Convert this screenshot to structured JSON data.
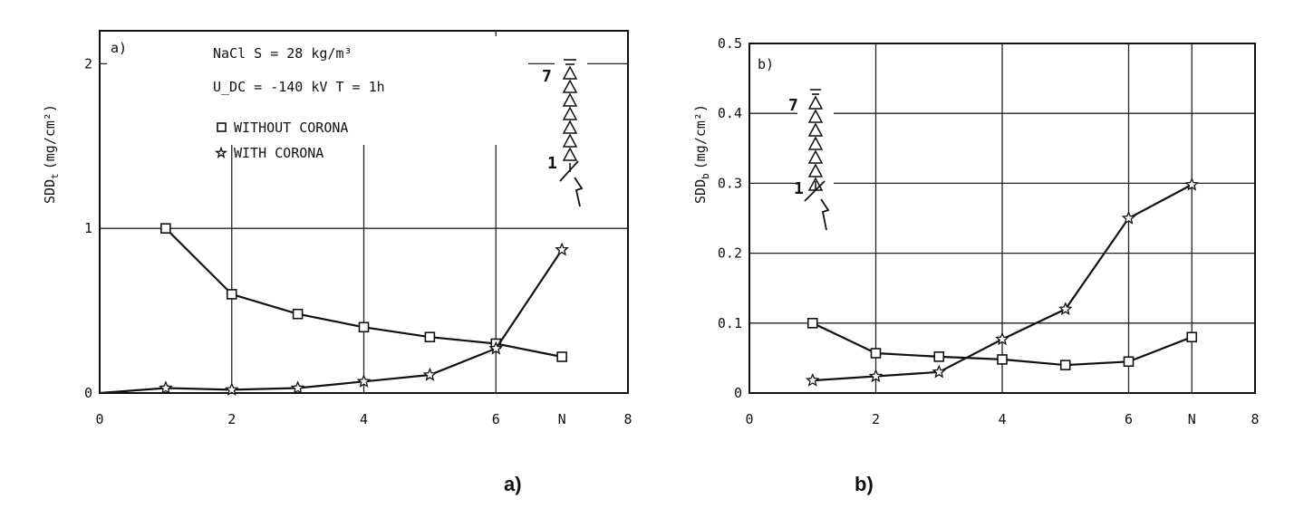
{
  "captions": {
    "a": "a)",
    "b": "b)"
  },
  "chart_data": [
    {
      "type": "line",
      "panel_label": "a)",
      "ylabel": "SDD_t (mg/cm²)",
      "ylabel_base": "SDD",
      "ylabel_sub": "t",
      "ylabel_unit": "(mg/cm²)",
      "xlim": [
        0,
        8
      ],
      "ylim": [
        0,
        2.2
      ],
      "xticks": [
        "0",
        "2",
        "4",
        "6",
        "N",
        "8"
      ],
      "xtick_values": [
        0,
        2,
        4,
        6,
        7,
        8
      ],
      "yticks": [
        "0",
        "1",
        "2"
      ],
      "ytick_values": [
        0,
        1,
        2
      ],
      "annotations": [
        "NaCl  S = 28 kg/m³",
        "U_DC = -140 kV   T = 1h"
      ],
      "legend": [
        "WITHOUT CORONA",
        "WITH CORONA"
      ],
      "insulator_labels": [
        "7",
        "1"
      ],
      "series": [
        {
          "name": "WITHOUT CORONA",
          "marker": "square",
          "x": [
            1,
            2,
            3,
            4,
            5,
            6,
            7
          ],
          "y": [
            1.0,
            0.6,
            0.48,
            0.4,
            0.34,
            0.3,
            0.22
          ]
        },
        {
          "name": "WITH CORONA",
          "marker": "star",
          "x": [
            0,
            1,
            2,
            3,
            4,
            5,
            6,
            7
          ],
          "y": [
            0.0,
            0.03,
            0.02,
            0.03,
            0.07,
            0.11,
            0.27,
            0.87
          ]
        }
      ]
    },
    {
      "type": "line",
      "panel_label": "b)",
      "ylabel": "SDD_b (mg/cm²)",
      "ylabel_base": "SDD",
      "ylabel_sub": "b",
      "ylabel_unit": "(mg/cm²)",
      "xlim": [
        0,
        8
      ],
      "ylim": [
        0,
        0.5
      ],
      "xticks": [
        "0",
        "2",
        "4",
        "6",
        "N",
        "8"
      ],
      "xtick_values": [
        0,
        2,
        4,
        6,
        7,
        8
      ],
      "yticks": [
        "0",
        "0.1",
        "0.2",
        "0.3",
        "0.4",
        "0.5"
      ],
      "ytick_values": [
        0,
        0.1,
        0.2,
        0.3,
        0.4,
        0.5
      ],
      "insulator_labels": [
        "7",
        "1"
      ],
      "series": [
        {
          "marker": "square",
          "x": [
            1,
            2,
            3,
            4,
            5,
            6,
            7
          ],
          "y": [
            0.1,
            0.057,
            0.052,
            0.048,
            0.04,
            0.045,
            0.08
          ]
        },
        {
          "marker": "star",
          "x": [
            1,
            2,
            3,
            4,
            5,
            6,
            7
          ],
          "y": [
            0.018,
            0.024,
            0.03,
            0.077,
            0.12,
            0.25,
            0.298
          ]
        }
      ]
    }
  ]
}
